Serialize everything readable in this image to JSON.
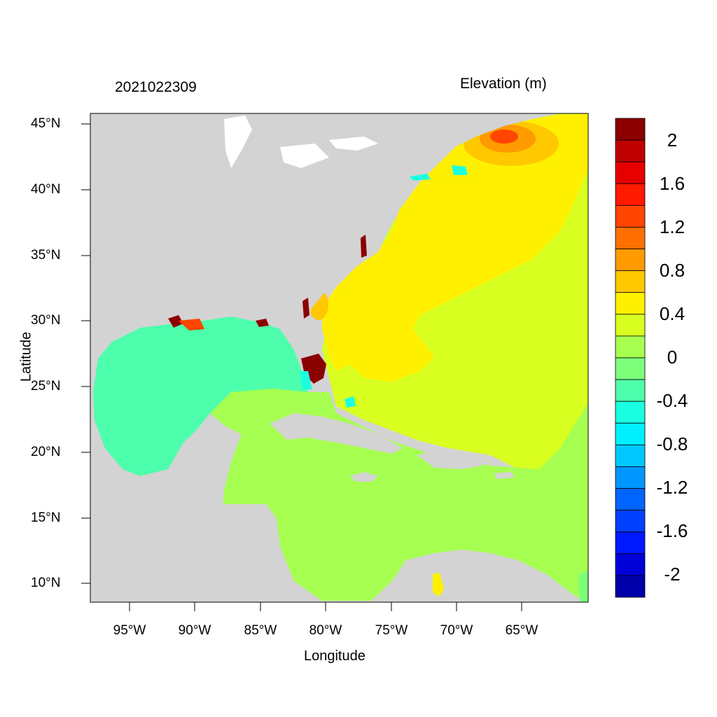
{
  "header": {
    "date": "2021022309",
    "units": "Elevation (m)"
  },
  "axes": {
    "xlabel": "Longitude",
    "ylabel": "Latitude",
    "lat_ticks": [
      "45°N",
      "40°N",
      "35°N",
      "30°N",
      "25°N",
      "20°N",
      "15°N",
      "10°N"
    ],
    "lon_ticks": [
      "95°W",
      "90°W",
      "85°W",
      "80°W",
      "75°W",
      "70°W",
      "65°W"
    ]
  },
  "colorbar": {
    "labels": [
      "2",
      "1.6",
      "1.2",
      "0.8",
      "0.4",
      "0",
      "-0.4",
      "-0.8",
      "-1.2",
      "-1.6",
      "-2"
    ],
    "colors": [
      "#8b0000",
      "#bf0000",
      "#e60000",
      "#ff1a00",
      "#ff4500",
      "#ff7000",
      "#ff9a00",
      "#ffc800",
      "#fff000",
      "#d8ff20",
      "#a6ff50",
      "#7dff7a",
      "#4dffac",
      "#1affe0",
      "#00f0ff",
      "#00c8ff",
      "#0096ff",
      "#0064ff",
      "#0040ff",
      "#0018ff",
      "#0000d8",
      "#0000aa"
    ]
  },
  "map": {
    "land_color": "#d3d3d3",
    "lon_range": [
      -98,
      -60
    ],
    "lat_range": [
      8.5,
      46
    ]
  }
}
